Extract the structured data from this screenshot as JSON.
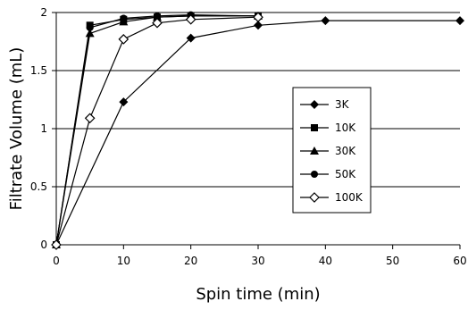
{
  "chart_data": {
    "type": "line",
    "title": "",
    "xlabel": "Spin time (min)",
    "ylabel": "Filtrate Volume (mL)",
    "xlim": [
      0,
      60
    ],
    "ylim": [
      0,
      2
    ],
    "xticks": [
      "0",
      "10",
      "20",
      "30",
      "40",
      "50",
      "60"
    ],
    "yticks": [
      "0",
      "0.5",
      "1",
      "1.5",
      "2"
    ],
    "grid": "horizontal",
    "legend_position": "right-center",
    "series": [
      {
        "name": "3K",
        "marker": "diamond-filled",
        "x": [
          0,
          10,
          20,
          30,
          40,
          60
        ],
        "y": [
          0,
          1.23,
          1.78,
          1.89,
          1.93,
          1.93
        ]
      },
      {
        "name": "10K",
        "marker": "square-filled",
        "x": [
          0,
          5,
          10,
          15,
          20,
          30
        ],
        "y": [
          0,
          1.89,
          1.94,
          1.96,
          1.97,
          1.97
        ]
      },
      {
        "name": "30K",
        "marker": "triangle-filled",
        "x": [
          0,
          5,
          10,
          15,
          20,
          30
        ],
        "y": [
          0,
          1.82,
          1.92,
          1.96,
          1.97,
          1.97
        ]
      },
      {
        "name": "50K",
        "marker": "circle-filled",
        "x": [
          0,
          5,
          10,
          15,
          20,
          30
        ],
        "y": [
          0,
          1.87,
          1.95,
          1.97,
          1.98,
          1.97
        ]
      },
      {
        "name": "100K",
        "marker": "diamond-open",
        "x": [
          0,
          5,
          10,
          15,
          20,
          30
        ],
        "y": [
          0,
          1.09,
          1.77,
          1.91,
          1.94,
          1.96
        ]
      }
    ]
  }
}
